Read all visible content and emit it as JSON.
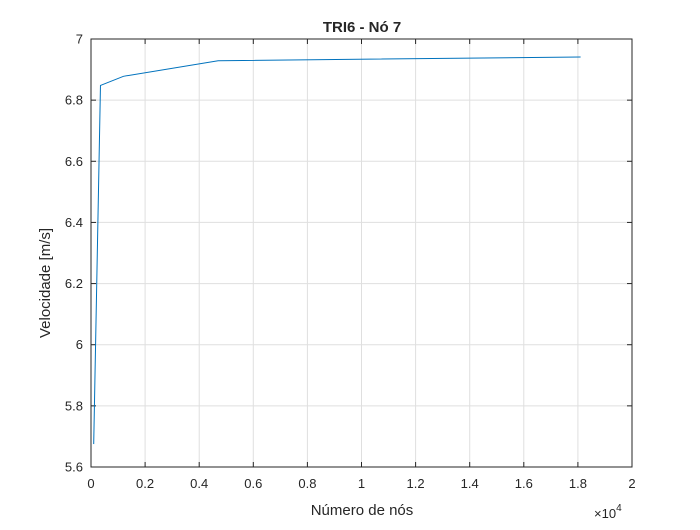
{
  "chart_data": {
    "type": "line",
    "title": "TRI6 - Nó 7",
    "xlabel": "Número de nós",
    "ylabel": "Velocidade [m/s]",
    "xlim": [
      0,
      2
    ],
    "ylim": [
      5.6,
      7
    ],
    "x_exponent_label": "×10",
    "x_exponent_power": "4",
    "xticks": [
      "0",
      "0.2",
      "0.4",
      "0.6",
      "0.8",
      "1",
      "1.2",
      "1.4",
      "1.6",
      "1.8",
      "2"
    ],
    "xtick_values": [
      0,
      0.2,
      0.4,
      0.6,
      0.8,
      1.0,
      1.2,
      1.4,
      1.6,
      1.8,
      2.0
    ],
    "yticks": [
      "5.6",
      "5.8",
      "6",
      "6.2",
      "6.4",
      "6.6",
      "6.8",
      "7"
    ],
    "ytick_values": [
      5.6,
      5.8,
      6.0,
      6.2,
      6.4,
      6.6,
      6.8,
      7.0
    ],
    "grid": true,
    "series": [
      {
        "color": "#0072BD",
        "x": [
          0.01,
          0.035,
          0.12,
          0.47,
          1.81
        ],
        "y": [
          5.675,
          6.848,
          6.878,
          6.929,
          6.941
        ]
      }
    ]
  }
}
